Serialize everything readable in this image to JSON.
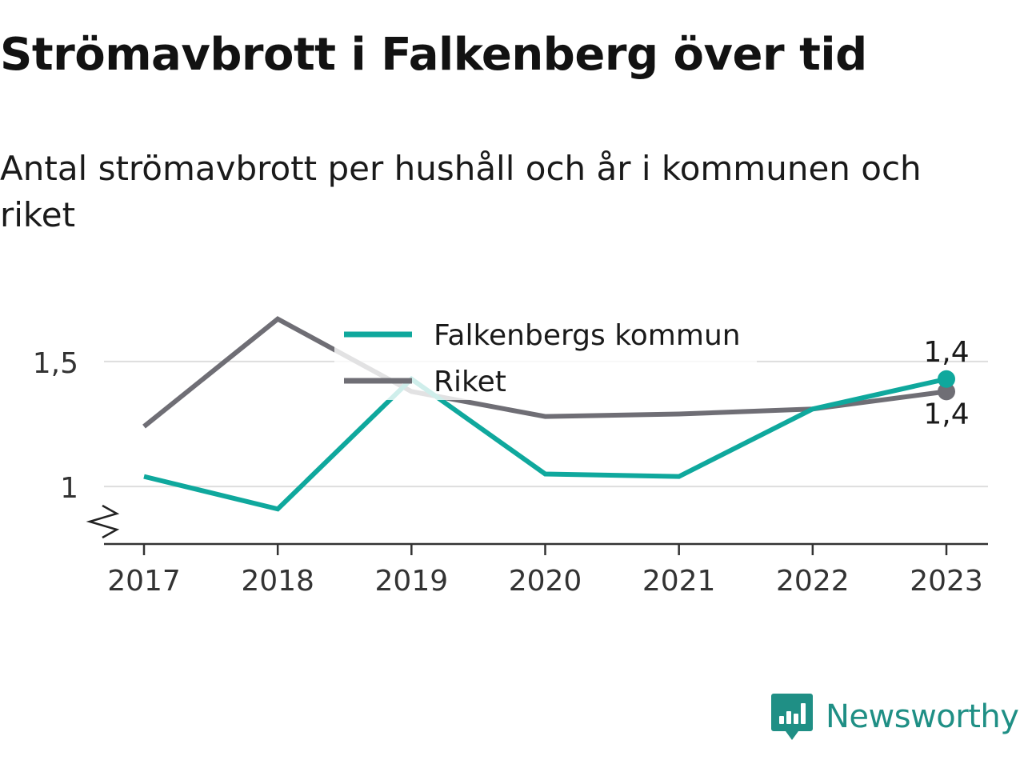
{
  "title": "Strömavbrott i Falkenberg över tid",
  "subtitle": "Antal strömavbrott per hushåll och år i kommunen och riket",
  "chart_data": {
    "type": "line",
    "x": [
      2017,
      2018,
      2019,
      2020,
      2021,
      2022,
      2023
    ],
    "series": [
      {
        "name": "Falkenbergs kommun",
        "color": "#0fa89d",
        "values": [
          1.04,
          0.91,
          1.43,
          1.05,
          1.04,
          1.31,
          1.43
        ]
      },
      {
        "name": "Riket",
        "color": "#6f6e75",
        "values": [
          1.24,
          1.67,
          1.38,
          1.28,
          1.29,
          1.31,
          1.38
        ]
      }
    ],
    "end_labels": [
      "1,4",
      "1,4"
    ],
    "y_ticks": [
      {
        "value": 1,
        "label": "1"
      },
      {
        "value": 1.5,
        "label": "1,5"
      }
    ],
    "x_tick_labels": [
      "2017",
      "2018",
      "2019",
      "2020",
      "2021",
      "2022",
      "2023"
    ],
    "ylim": [
      0.77,
      1.73
    ],
    "y_axis_break": true,
    "grid": "horizontal",
    "legend_placement": "top-center"
  },
  "brand": {
    "name": "Newsworthy",
    "color": "#1f8f85"
  }
}
